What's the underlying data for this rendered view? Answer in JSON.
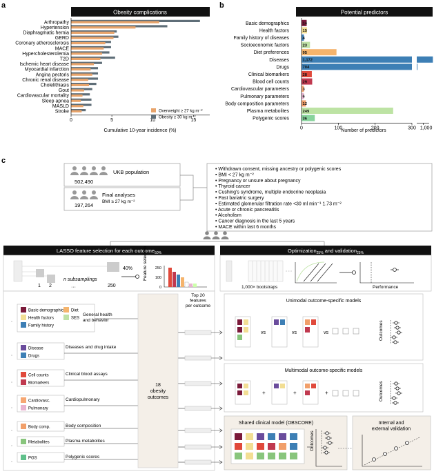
{
  "panel_a": {
    "letter": "a",
    "title": "Obesity complications",
    "xlabel": "Cumulative 10-year incidence (%)",
    "ticks": [
      "0",
      "5",
      "10",
      "15"
    ],
    "legend": {
      "overweight": "Overweight ≥ 27 kg m⁻²",
      "obesity": "Obesity ≥ 30 kg m⁻²"
    },
    "colors": {
      "overweight": "#E8A46B",
      "obesity": "#5F6E78"
    }
  },
  "chart_data": [
    {
      "type": "bar",
      "orientation": "horizontal",
      "title": "Obesity complications",
      "xlabel": "Cumulative 10-year incidence (%)",
      "xlim": [
        0,
        17
      ],
      "categories": [
        "Arthropathy",
        "Hypertension",
        "Diaphragmatic hernia",
        "GERD",
        "Coronary atherosclerosis",
        "MACE",
        "Hypercholesterolemia",
        "T2D",
        "Ischemic heart disease",
        "Myocardial infarction",
        "Angina pectoris",
        "Chronic renal disease",
        "Cholelithiasis",
        "Gout",
        "Cardiovascular mortality",
        "Sleep apnea",
        "MASLD",
        "Stroke"
      ],
      "series": [
        {
          "name": "Overweight ≥ 27 kg m⁻²",
          "values": [
            10.8,
            7.9,
            5.3,
            5.2,
            4.2,
            4.0,
            3.8,
            3.6,
            2.8,
            2.4,
            2.6,
            2.1,
            2.2,
            1.6,
            1.4,
            1.2,
            1.5,
            1.3
          ]
        },
        {
          "name": "Obesity ≥ 30 kg m⁻²",
          "values": [
            15.8,
            11.8,
            5.6,
            5.8,
            4.9,
            4.9,
            4.7,
            5.4,
            3.8,
            3.3,
            3.3,
            3.3,
            3.1,
            2.6,
            2.3,
            2.5,
            2.5,
            1.8
          ]
        }
      ]
    },
    {
      "type": "bar",
      "orientation": "horizontal",
      "title": "Potential predictors",
      "xlabel": "Number of predictors",
      "categories": [
        "Basic demographics",
        "Health factors",
        "Family history of diseases",
        "Socioeconomic factors",
        "Diet preferences",
        "Diseases",
        "Drugs",
        "Clinical biomarkers",
        "Blood cell counts",
        "Cardiovascular parameters",
        "Pulmonary parameters",
        "Body composition parameters",
        "Plasma metabolites",
        "Polygenic scores"
      ],
      "values": [
        14,
        15,
        4,
        23,
        95,
        1172,
        704,
        28,
        29,
        3,
        6,
        12,
        249,
        36
      ],
      "labels": [
        "14",
        "15",
        "4",
        "23",
        "95",
        "1,172",
        "704",
        "28",
        "29",
        "3",
        "6",
        "12",
        "249",
        "36"
      ],
      "colors": [
        "#7B1A3A",
        "#F2DE94",
        "#3D7FB5",
        "#BFE1A6",
        "#F5B46C",
        "#3D7FB5",
        "#3D7FB5",
        "#E0493B",
        "#C0394F",
        "#F6A773",
        "#E8B3D0",
        "#F19F6A",
        "#BDE3A4",
        "#88D39C"
      ],
      "ticks": [
        "0",
        "100",
        "200",
        "300",
        "1,000"
      ]
    }
  ],
  "panel_b": {
    "letter": "b",
    "title": "Potential predictors",
    "xlabel": "Number of predictors"
  },
  "panel_c": {
    "letter": "c",
    "ukb_label": "UKB population",
    "ukb_count": "502,490",
    "final_label": "Final analyses",
    "final_count": "197,264",
    "final_bmi": "BMI ≥ 27 kg m⁻²",
    "exclusions": [
      "• Withdrawn consent, missing ancestry or polygenic scores",
      "• BMI < 27 kg m⁻²",
      "• Pregnancy or unsure about pregnancy",
      "• Thyroid cancer",
      "• Cushing's syndrome, multiple endocrine neoplasia",
      "• Past bariatric surgery",
      "• Estimated glomerular filtration rate <30 ml min⁻¹ 1.73 m⁻²",
      "• Acute or chronic pancreatitis",
      "• Alcoholism",
      "• Cancer diagnosis in the last 5 years",
      "• MACE within last 6 months"
    ],
    "lasso_header": "LASSO feature selection for each outcome",
    "lasso_sub": "50%",
    "opt_header": "Optimization",
    "opt_sub1": "25%",
    "opt_mid": " and validation",
    "opt_sub2": "25%",
    "pct40": "40%",
    "sub1": "1",
    "sub2": "2",
    "n_subsamplings": "n subsamplings",
    "dots": "···",
    "n250": "250",
    "fs_label": "Feature selection",
    "fs_ticks": [
      "250",
      "100",
      "0"
    ],
    "bootstraps": "1,000× bootstraps",
    "performance": "Performance",
    "legend_items": [
      {
        "label": "Basic demographics",
        "color": "#7B1A3A"
      },
      {
        "label": "Diet",
        "color": "#F5B46C"
      },
      {
        "label": "Health factors",
        "color": "#F2DE94"
      },
      {
        "label": "SES",
        "color": "#BFE1A6"
      },
      {
        "label": "Family history",
        "color": "#3D7FB5"
      }
    ],
    "groups": [
      {
        "label": "General health and behavior",
        "items": []
      },
      {
        "label": "Diseases and drug intake",
        "items": [
          {
            "label": "Disease",
            "color": "#6A4C9C"
          },
          {
            "label": "Drugs",
            "color": "#3D7FB5"
          }
        ]
      },
      {
        "label": "Clinical blood assays",
        "items": [
          {
            "label": "Cell counts",
            "color": "#E0493B"
          },
          {
            "label": "Biomarkers",
            "color": "#C0394F"
          }
        ]
      },
      {
        "label": "Cardiopulmonary",
        "items": [
          {
            "label": "Cardiovasc.",
            "color": "#F6A773"
          },
          {
            "label": "Pulmonary",
            "color": "#E8B3D0"
          }
        ]
      },
      {
        "label": "Body composition",
        "items": [
          {
            "label": "Body comp.",
            "color": "#F19F6A"
          }
        ]
      },
      {
        "label": "Plasma metabolites",
        "items": [
          {
            "label": "Metabolites",
            "color": "#88C57C"
          }
        ]
      },
      {
        "label": "Polygenic scores",
        "items": [
          {
            "label": "PGS",
            "color": "#5FC08A"
          }
        ]
      }
    ],
    "center_label": "18\nobesity\noutcomes",
    "top20_label": "Top 20\nfeatures\nper outcome",
    "unimodal_title": "Unimodal outcome-specific models",
    "multimodal_title": "Multimodal outcome-specific models",
    "outcomes_label": "Outcomes",
    "vs": "vs",
    "plus": "+",
    "shared_title": "Shared clinical model (OBSCORE)",
    "validation_title": "Internal and\nexternal validation"
  }
}
